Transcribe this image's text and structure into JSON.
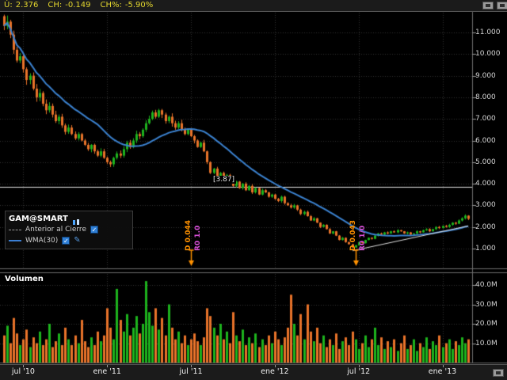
{
  "quote_bar": {
    "last_label": "Ú:",
    "last": "2.376",
    "change_label": "CH:",
    "change": "-0.149",
    "change_pct_label": "CH%:",
    "change_pct": "-5.90%"
  },
  "legend": {
    "title": "GAM@SMART",
    "series": [
      {
        "label": "Anterior al Cierre",
        "checked": true
      },
      {
        "label": "WMA(30)",
        "checked": true
      }
    ]
  },
  "icons": {
    "check": "✓",
    "edit": "✎"
  },
  "volume_title": "Volumen",
  "hline": {
    "label": "[3.87]",
    "price": 3.87
  },
  "events": [
    {
      "d_label": "D 0.044",
      "r_label": "R0 1.0",
      "week": 58
    },
    {
      "d_label": "D 0.043",
      "r_label": "R0 1/0",
      "week": 109
    }
  ],
  "colors": {
    "up": "#1db31d",
    "down": "#e8732a",
    "wma": "#3b82d0",
    "quote_text": "#e3d62e",
    "event_d": "#ff9100",
    "event_r": "#d24dd2",
    "event_arrow": "#ff9100",
    "hline": "#e8e8e8",
    "trendline": "#e0e0e0",
    "grid": "#333333",
    "separator": "#6e6e6e",
    "axis_text": "#d4d4d4"
  },
  "chart_data": {
    "type": "candlestick+volume",
    "symbol": "GAM@SMART",
    "title": "GAM weekly price with WMA(30) and volume",
    "x_ticks": [
      {
        "week": 6,
        "label": "jul '10"
      },
      {
        "week": 32,
        "label": "ene '11"
      },
      {
        "week": 58,
        "label": "jul '11"
      },
      {
        "week": 84,
        "label": "ene '12"
      },
      {
        "week": 110,
        "label": "jul '12"
      },
      {
        "week": 136,
        "label": "ene '13"
      }
    ],
    "price_axis": {
      "ticks": [
        1,
        2,
        3,
        4,
        5,
        6,
        7,
        8,
        9,
        10,
        11
      ],
      "tick_labels": [
        "1.000",
        "2.000",
        "3.000",
        "4.000",
        "5.000",
        "6.000",
        "7.000",
        "8.000",
        "9.000",
        "10.000",
        "11.000"
      ],
      "min": 0.12,
      "max": 11.92
    },
    "volume_axis": {
      "ticks": [
        10,
        20,
        30,
        40
      ],
      "tick_labels": [
        "10.0M",
        "20.0M",
        "30.0M",
        "40.0M"
      ],
      "unit": "M"
    },
    "wma_period": 30,
    "prev_close": 2.525,
    "last": 2.376,
    "hline_price": 3.87,
    "trendline": {
      "week1": 108,
      "price1": 0.9,
      "week2": 144,
      "price2": 2.05
    },
    "weekly_closes": [
      11.3,
      11.5,
      10.9,
      10.2,
      9.7,
      9.9,
      9.3,
      8.8,
      9.0,
      8.4,
      8.0,
      8.2,
      7.7,
      7.4,
      7.6,
      7.2,
      6.9,
      7.1,
      6.7,
      6.4,
      6.6,
      6.3,
      6.1,
      6.3,
      6.0,
      5.8,
      5.6,
      5.8,
      5.5,
      5.3,
      5.5,
      5.2,
      5.0,
      4.9,
      5.2,
      5.4,
      5.3,
      5.6,
      5.9,
      5.7,
      6.0,
      6.3,
      6.2,
      6.5,
      6.8,
      7.0,
      7.3,
      7.1,
      7.4,
      7.2,
      6.9,
      7.1,
      6.8,
      6.6,
      6.8,
      6.5,
      6.3,
      6.5,
      6.2,
      6.0,
      5.7,
      5.9,
      5.5,
      5.0,
      4.5,
      4.7,
      4.3,
      4.5,
      4.2,
      4.4,
      4.1,
      3.9,
      4.1,
      3.8,
      4.0,
      3.7,
      3.9,
      3.6,
      3.8,
      3.5,
      3.7,
      3.6,
      3.4,
      3.5,
      3.3,
      3.2,
      3.4,
      3.1,
      3.0,
      2.9,
      3.0,
      2.8,
      2.6,
      2.7,
      2.5,
      2.3,
      2.4,
      2.2,
      2.0,
      2.1,
      1.9,
      1.7,
      1.8,
      1.6,
      1.4,
      1.5,
      1.3,
      1.2,
      1.05,
      1.15,
      1.3,
      1.25,
      1.4,
      1.5,
      1.45,
      1.6,
      1.7,
      1.65,
      1.75,
      1.7,
      1.8,
      1.75,
      1.85,
      1.8,
      1.7,
      1.75,
      1.65,
      1.7,
      1.8,
      1.75,
      1.85,
      1.9,
      1.8,
      1.9,
      2.0,
      1.95,
      2.05,
      2.0,
      2.1,
      2.2,
      2.15,
      2.3,
      2.4,
      2.525,
      2.376
    ],
    "weekly_volumes_m": [
      14,
      19,
      10,
      23,
      15,
      9,
      12,
      17,
      8,
      13,
      10,
      16,
      9,
      12,
      20,
      8,
      11,
      15,
      9,
      18,
      12,
      9,
      14,
      10,
      22,
      11,
      8,
      13,
      9,
      16,
      11,
      14,
      28,
      18,
      12,
      38,
      22,
      16,
      25,
      14,
      18,
      24,
      15,
      20,
      42,
      26,
      19,
      28,
      17,
      23,
      14,
      30,
      18,
      12,
      16,
      10,
      14,
      9,
      12,
      15,
      11,
      9,
      13,
      28,
      24,
      18,
      14,
      20,
      12,
      16,
      10,
      26,
      14,
      11,
      17,
      9,
      13,
      10,
      15,
      8,
      12,
      9,
      14,
      10,
      16,
      12,
      9,
      13,
      18,
      35,
      20,
      14,
      25,
      12,
      30,
      16,
      11,
      18,
      10,
      14,
      8,
      12,
      9,
      15,
      7,
      11,
      13,
      9,
      16,
      12,
      7,
      10,
      14,
      8,
      12,
      18,
      9,
      13,
      7,
      11,
      8,
      12,
      6,
      10,
      14,
      7,
      9,
      12,
      6,
      10,
      8,
      13,
      7,
      11,
      9,
      14,
      8,
      10,
      12,
      7,
      11,
      9,
      13,
      10,
      12
    ]
  }
}
